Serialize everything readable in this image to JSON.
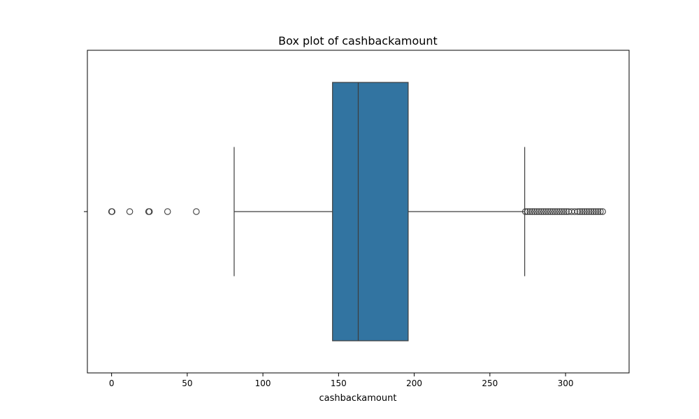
{
  "chart_data": {
    "type": "box",
    "title": "Box plot of cashbackamount",
    "xlabel": "cashbackamount",
    "ylabel": "",
    "orientation": "horizontal",
    "xlim": [
      -16,
      342
    ],
    "xticks": [
      0,
      50,
      100,
      150,
      200,
      250,
      300
    ],
    "xtick_labels": [
      "0",
      "50",
      "100",
      "150",
      "200",
      "250",
      "300"
    ],
    "grid": false,
    "box": {
      "whisker_low": 81,
      "q1": 146,
      "median": 163,
      "q3": 196,
      "whisker_high": 273,
      "outliers_low": [
        0,
        0.3,
        12,
        24.5,
        25,
        37,
        56
      ],
      "outliers_high": [
        273.5,
        275,
        276.5,
        278,
        279.5,
        281,
        282.5,
        284,
        285.5,
        287,
        288.5,
        290,
        291.5,
        293,
        294.5,
        296,
        297.5,
        299,
        300.5,
        302,
        304,
        306,
        308,
        309.5,
        311,
        312.5,
        314,
        315.5,
        317,
        318.5,
        320,
        321.5,
        323,
        324.5
      ]
    },
    "colors": {
      "box_fill": "#3274a1",
      "line": "#3d3d3d"
    }
  }
}
